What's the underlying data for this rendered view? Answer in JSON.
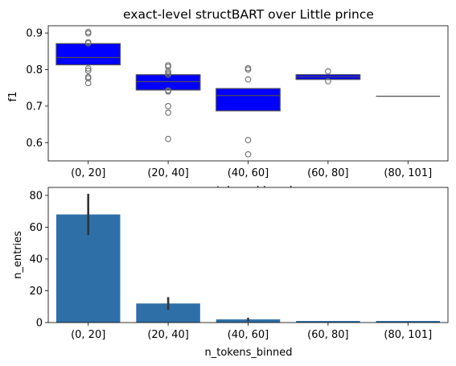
{
  "colors": {
    "box_fill": "#0000ff",
    "box_edge": "#4d4d4d",
    "bar_fill": "#2f6fa7",
    "error_bar": "#333333",
    "axes": "#000000",
    "background": "#ffffff"
  },
  "chart_data": [
    {
      "type": "box",
      "title": "exact-level structBART over Little prince",
      "xlabel": "n_tokens_binned",
      "ylabel": "f1",
      "categories": [
        "(0, 20]",
        "(20, 40]",
        "(40, 60]",
        "(60, 80]",
        "(80, 101]"
      ],
      "ylim": [
        0.55,
        0.92
      ],
      "yticks": [
        0.6,
        0.7,
        0.8,
        0.9
      ],
      "ytick_labels": [
        "0.6",
        "0.7",
        "0.8",
        "0.9"
      ],
      "boxes": [
        {
          "category": "(0, 20]",
          "whisker_low": 0.813,
          "q1": 0.813,
          "median": 0.833,
          "q3": 0.871,
          "whisker_high": 0.871,
          "outliers": [
            0.903,
            0.899,
            0.875,
            0.872,
            0.803,
            0.797,
            0.78,
            0.776,
            0.763
          ]
        },
        {
          "category": "(20, 40]",
          "whisker_low": 0.744,
          "q1": 0.744,
          "median": 0.767,
          "q3": 0.786,
          "whisker_high": 0.786,
          "outliers": [
            0.812,
            0.808,
            0.795,
            0.79,
            0.786,
            0.743,
            0.74,
            0.7,
            0.682,
            0.61
          ]
        },
        {
          "category": "(40, 60]",
          "whisker_low": 0.687,
          "q1": 0.687,
          "median": 0.729,
          "q3": 0.748,
          "whisker_high": 0.748,
          "outliers": [
            0.804,
            0.8,
            0.773,
            0.607,
            0.568
          ]
        },
        {
          "category": "(60, 80]",
          "whisker_low": 0.773,
          "q1": 0.773,
          "median": 0.78,
          "q3": 0.786,
          "whisker_high": 0.786,
          "outliers": [
            0.795,
            0.768
          ]
        },
        {
          "category": "(80, 101]",
          "whisker_low": 0.727,
          "q1": 0.727,
          "median": 0.727,
          "q3": 0.727,
          "whisker_high": 0.727,
          "outliers": []
        }
      ]
    },
    {
      "type": "bar",
      "xlabel": "n_tokens_binned",
      "ylabel": "n_entries",
      "categories": [
        "(0, 20]",
        "(20, 40]",
        "(40, 60]",
        "(60, 80]",
        "(80, 101]"
      ],
      "values": [
        68,
        12,
        2,
        1,
        1
      ],
      "error_low": [
        55,
        8,
        1,
        1,
        1
      ],
      "error_high": [
        81,
        16,
        3,
        1,
        1
      ],
      "ylim": [
        0,
        85
      ],
      "yticks": [
        0,
        20,
        40,
        60,
        80
      ],
      "ytick_labels": [
        "0",
        "20",
        "40",
        "60",
        "80"
      ]
    }
  ]
}
